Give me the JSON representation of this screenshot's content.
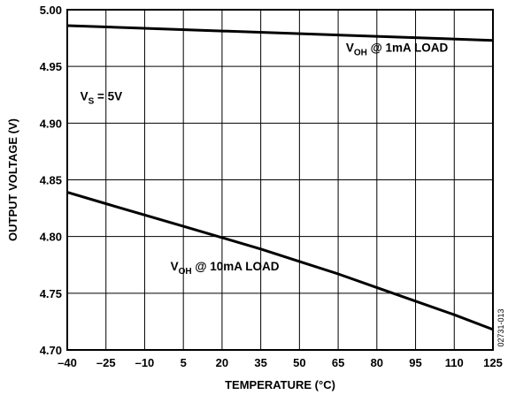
{
  "chart_data": {
    "type": "line",
    "xlabel": "TEMPERATURE (°C)",
    "ylabel": "OUTPUT VOLTAGE (V)",
    "xlim": [
      -40,
      125
    ],
    "ylim": [
      4.7,
      5.0
    ],
    "x_ticks": [
      -40,
      -25,
      -10,
      5,
      20,
      35,
      50,
      65,
      80,
      95,
      110,
      125
    ],
    "x_tick_labels": [
      "–40",
      "–25",
      "–10",
      "5",
      "20",
      "35",
      "50",
      "65",
      "80",
      "95",
      "110",
      "125"
    ],
    "y_ticks": [
      4.7,
      4.75,
      4.8,
      4.85,
      4.9,
      4.95,
      5.0
    ],
    "y_tick_labels": [
      "4.70",
      "4.75",
      "4.80",
      "4.85",
      "4.90",
      "4.95",
      "5.00"
    ],
    "grid": true,
    "series": [
      {
        "name": "VOH @ 1mA LOAD",
        "x": [
          -40,
          125
        ],
        "y": [
          4.986,
          4.973
        ]
      },
      {
        "name": "VOH @ 10mA LOAD",
        "x": [
          -40,
          -25,
          -10,
          5,
          20,
          35,
          50,
          65,
          80,
          95,
          110,
          125
        ],
        "y": [
          4.839,
          4.829,
          4.819,
          4.809,
          4.799,
          4.789,
          4.778,
          4.767,
          4.755,
          4.743,
          4.731,
          4.718
        ]
      }
    ],
    "annotations": [
      {
        "id": "vs",
        "main": "V",
        "sub": "S",
        "rest": " = 5V",
        "x": -35,
        "y": 4.92
      },
      {
        "id": "s1",
        "main": "V",
        "sub": "OH",
        "rest": " @ 1mA LOAD",
        "x": 68,
        "y": 4.963
      },
      {
        "id": "s2",
        "main": "V",
        "sub": "OH",
        "rest": " @ 10mA LOAD",
        "x": 0,
        "y": 4.77
      }
    ],
    "figure_id": "02731-013"
  }
}
